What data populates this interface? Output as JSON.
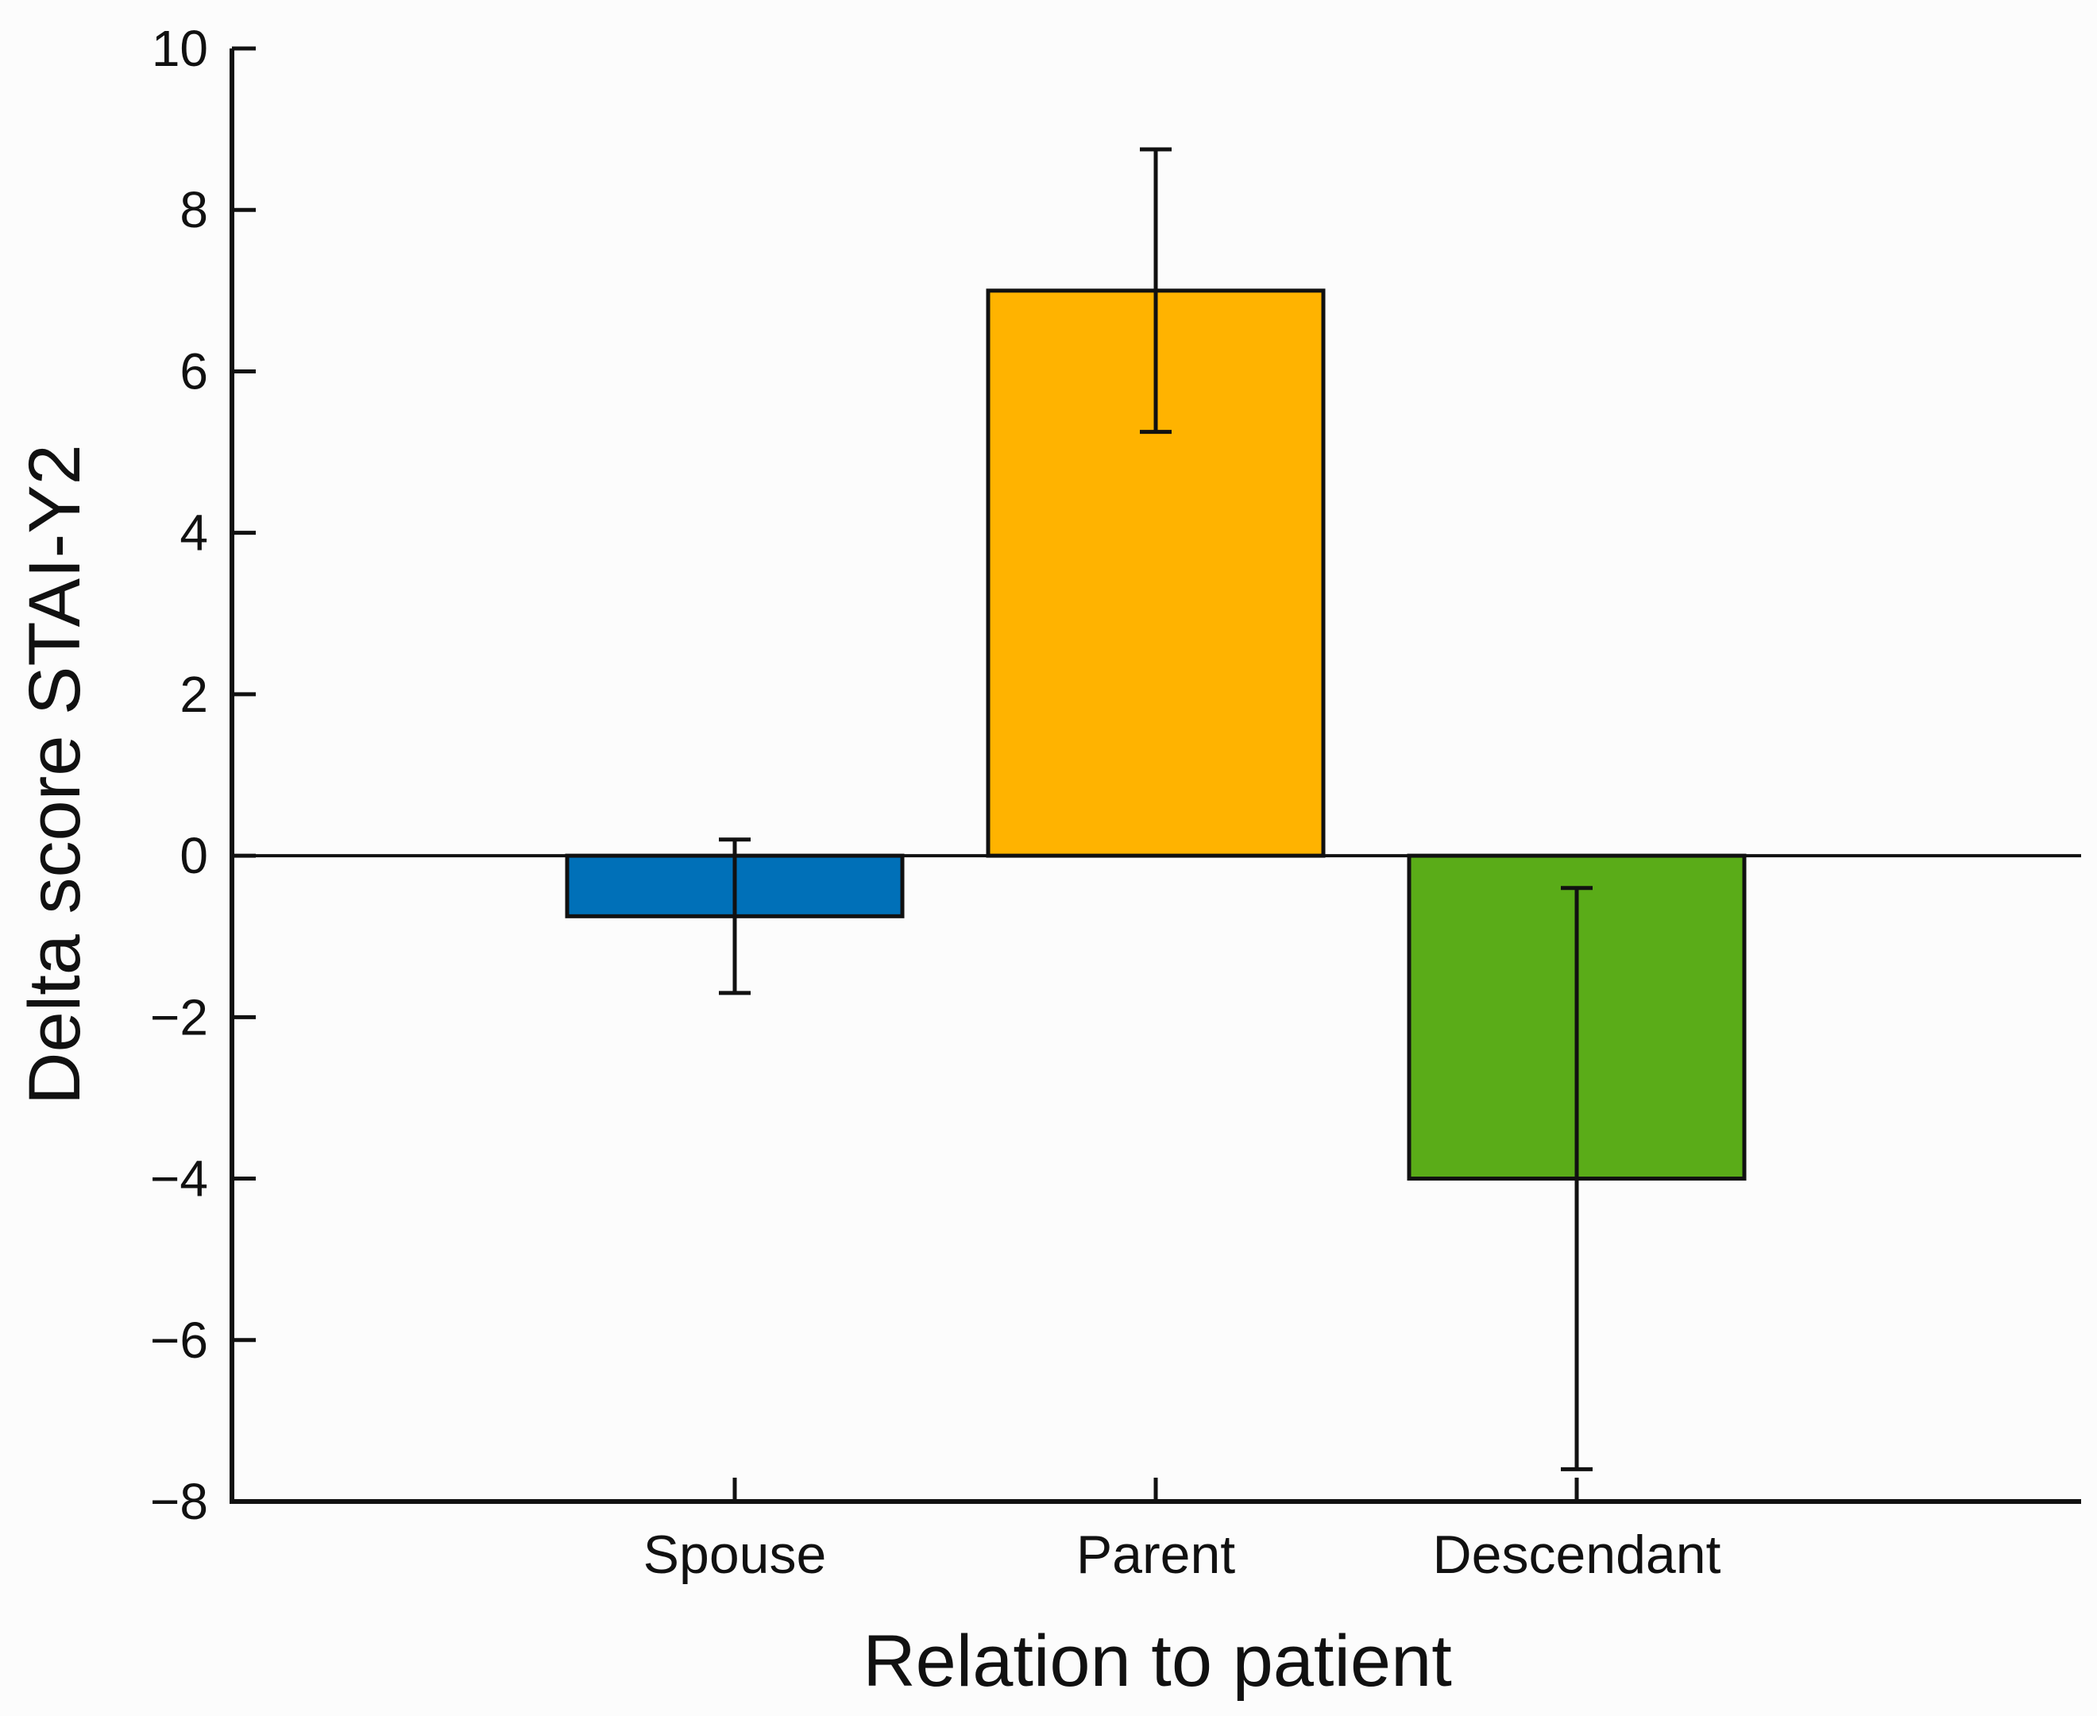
{
  "chart_data": {
    "type": "bar",
    "title": "",
    "xlabel": "Relation to patient",
    "ylabel": "Delta score STAI-Y2",
    "ylim": [
      -8,
      10
    ],
    "yticks": [
      10,
      8,
      6,
      4,
      2,
      0,
      -2,
      -4,
      -6,
      -8
    ],
    "ytick_labels": [
      "10",
      "8",
      "6",
      "4",
      "2",
      "0",
      "−2",
      "−4",
      "−6",
      "−8"
    ],
    "categories": [
      "Spouse",
      "Parent",
      "Descendant"
    ],
    "values": [
      -0.75,
      7.0,
      -4.0
    ],
    "error_low": [
      -1.7,
      5.25,
      -7.6
    ],
    "error_high": [
      0.2,
      8.75,
      -0.4
    ],
    "colors": [
      "#0070b8",
      "#ffb300",
      "#5aac18"
    ],
    "grid": false,
    "zero_line": true
  }
}
